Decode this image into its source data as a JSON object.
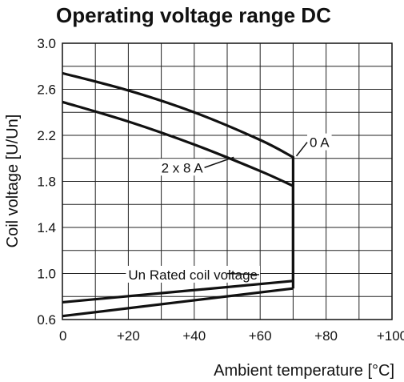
{
  "chart_data": {
    "type": "line",
    "title": "Operating voltage range DC",
    "xlabel": "Ambient temperature [°C]",
    "ylabel": "Coil voltage [U/Un]",
    "xlim": [
      0,
      100
    ],
    "ylim": [
      0.6,
      3.0
    ],
    "x_ticks": [
      0,
      20,
      40,
      60,
      80,
      100
    ],
    "x_tick_labels": [
      "0",
      "+20",
      "+40",
      "+60",
      "+80",
      "+100"
    ],
    "y_ticks": [
      0.6,
      1.0,
      1.4,
      1.8,
      2.2,
      2.6,
      3.0
    ],
    "y_tick_labels": [
      "0.6",
      "1.0",
      "1.4",
      "1.8",
      "2.2",
      "2.6",
      "3.0"
    ],
    "grid": true,
    "series": [
      {
        "name": "0 A",
        "x": [
          0,
          20,
          40,
          60,
          70,
          70
        ],
        "y": [
          2.74,
          2.59,
          2.4,
          2.16,
          2.01,
          0.935
        ]
      },
      {
        "name": "2 x 8 A",
        "x": [
          0,
          20,
          40,
          60,
          70,
          70
        ],
        "y": [
          2.49,
          2.32,
          2.12,
          1.89,
          1.76,
          0.87
        ]
      },
      {
        "name": "Un Rated coil voltage",
        "x": [
          0,
          70
        ],
        "y": [
          0.75,
          0.935
        ]
      },
      {
        "name": "",
        "x": [
          0,
          70
        ],
        "y": [
          0.63,
          0.87
        ]
      }
    ],
    "annotations": [
      {
        "text": "0 A",
        "x": 75,
        "y": 2.14,
        "target": [
          71,
          2.02
        ]
      },
      {
        "text": "2 x 8 A",
        "x": 30,
        "y": 1.92,
        "target": [
          52,
          2.01
        ]
      },
      {
        "text": "Un Rated coil voltage",
        "x": 20,
        "y": 0.99,
        "target": [
          50,
          1.0
        ]
      }
    ]
  }
}
